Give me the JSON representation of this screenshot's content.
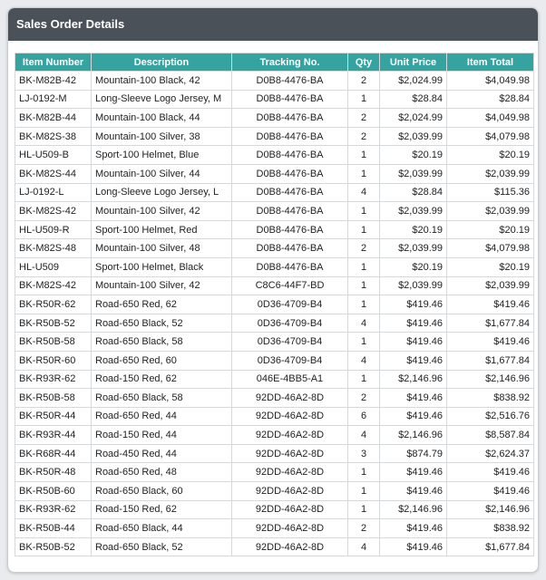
{
  "window": {
    "title": "Sales Order Details"
  },
  "table": {
    "headers": [
      "Item Number",
      "Description",
      "Tracking No.",
      "Qty",
      "Unit Price",
      "Item Total"
    ],
    "rows": [
      [
        "BK-M82B-42",
        "Mountain-100 Black, 42",
        "D0B8-4476-BA",
        "2",
        "$2,024.99",
        "$4,049.98"
      ],
      [
        "LJ-0192-M",
        "Long-Sleeve Logo Jersey, M",
        "D0B8-4476-BA",
        "1",
        "$28.84",
        "$28.84"
      ],
      [
        "BK-M82B-44",
        "Mountain-100 Black, 44",
        "D0B8-4476-BA",
        "2",
        "$2,024.99",
        "$4,049.98"
      ],
      [
        "BK-M82S-38",
        "Mountain-100 Silver, 38",
        "D0B8-4476-BA",
        "2",
        "$2,039.99",
        "$4,079.98"
      ],
      [
        "HL-U509-B",
        "Sport-100 Helmet, Blue",
        "D0B8-4476-BA",
        "1",
        "$20.19",
        "$20.19"
      ],
      [
        "BK-M82S-44",
        "Mountain-100 Silver, 44",
        "D0B8-4476-BA",
        "1",
        "$2,039.99",
        "$2,039.99"
      ],
      [
        "LJ-0192-L",
        "Long-Sleeve Logo Jersey, L",
        "D0B8-4476-BA",
        "4",
        "$28.84",
        "$115.36"
      ],
      [
        "BK-M82S-42",
        "Mountain-100 Silver, 42",
        "D0B8-4476-BA",
        "1",
        "$2,039.99",
        "$2,039.99"
      ],
      [
        "HL-U509-R",
        "Sport-100 Helmet, Red",
        "D0B8-4476-BA",
        "1",
        "$20.19",
        "$20.19"
      ],
      [
        "BK-M82S-48",
        "Mountain-100 Silver, 48",
        "D0B8-4476-BA",
        "2",
        "$2,039.99",
        "$4,079.98"
      ],
      [
        "HL-U509",
        "Sport-100 Helmet, Black",
        "D0B8-4476-BA",
        "1",
        "$20.19",
        "$20.19"
      ],
      [
        "BK-M82S-42",
        "Mountain-100 Silver, 42",
        "C8C6-44F7-BD",
        "1",
        "$2,039.99",
        "$2,039.99"
      ],
      [
        "BK-R50R-62",
        "Road-650 Red, 62",
        "0D36-4709-B4",
        "1",
        "$419.46",
        "$419.46"
      ],
      [
        "BK-R50B-52",
        "Road-650 Black, 52",
        "0D36-4709-B4",
        "4",
        "$419.46",
        "$1,677.84"
      ],
      [
        "BK-R50B-58",
        "Road-650 Black, 58",
        "0D36-4709-B4",
        "1",
        "$419.46",
        "$419.46"
      ],
      [
        "BK-R50R-60",
        "Road-650 Red, 60",
        "0D36-4709-B4",
        "4",
        "$419.46",
        "$1,677.84"
      ],
      [
        "BK-R93R-62",
        "Road-150 Red, 62",
        "046E-4BB5-A1",
        "1",
        "$2,146.96",
        "$2,146.96"
      ],
      [
        "BK-R50B-58",
        "Road-650 Black, 58",
        "92DD-46A2-8D",
        "2",
        "$419.46",
        "$838.92"
      ],
      [
        "BK-R50R-44",
        "Road-650 Red, 44",
        "92DD-46A2-8D",
        "6",
        "$419.46",
        "$2,516.76"
      ],
      [
        "BK-R93R-44",
        "Road-150 Red, 44",
        "92DD-46A2-8D",
        "4",
        "$2,146.96",
        "$8,587.84"
      ],
      [
        "BK-R68R-44",
        "Road-450 Red, 44",
        "92DD-46A2-8D",
        "3",
        "$874.79",
        "$2,624.37"
      ],
      [
        "BK-R50R-48",
        "Road-650 Red, 48",
        "92DD-46A2-8D",
        "1",
        "$419.46",
        "$419.46"
      ],
      [
        "BK-R50B-60",
        "Road-650 Black, 60",
        "92DD-46A2-8D",
        "1",
        "$419.46",
        "$419.46"
      ],
      [
        "BK-R93R-62",
        "Road-150 Red, 62",
        "92DD-46A2-8D",
        "1",
        "$2,146.96",
        "$2,146.96"
      ],
      [
        "BK-R50B-44",
        "Road-650 Black, 44",
        "92DD-46A2-8D",
        "2",
        "$419.46",
        "$838.92"
      ],
      [
        "BK-R50B-52",
        "Road-650 Black, 52",
        "92DD-46A2-8D",
        "4",
        "$419.46",
        "$1,677.84"
      ]
    ]
  },
  "colors": {
    "header_bar": "#4b5159",
    "table_header": "#35a4a0",
    "border": "#d6d9dc"
  }
}
